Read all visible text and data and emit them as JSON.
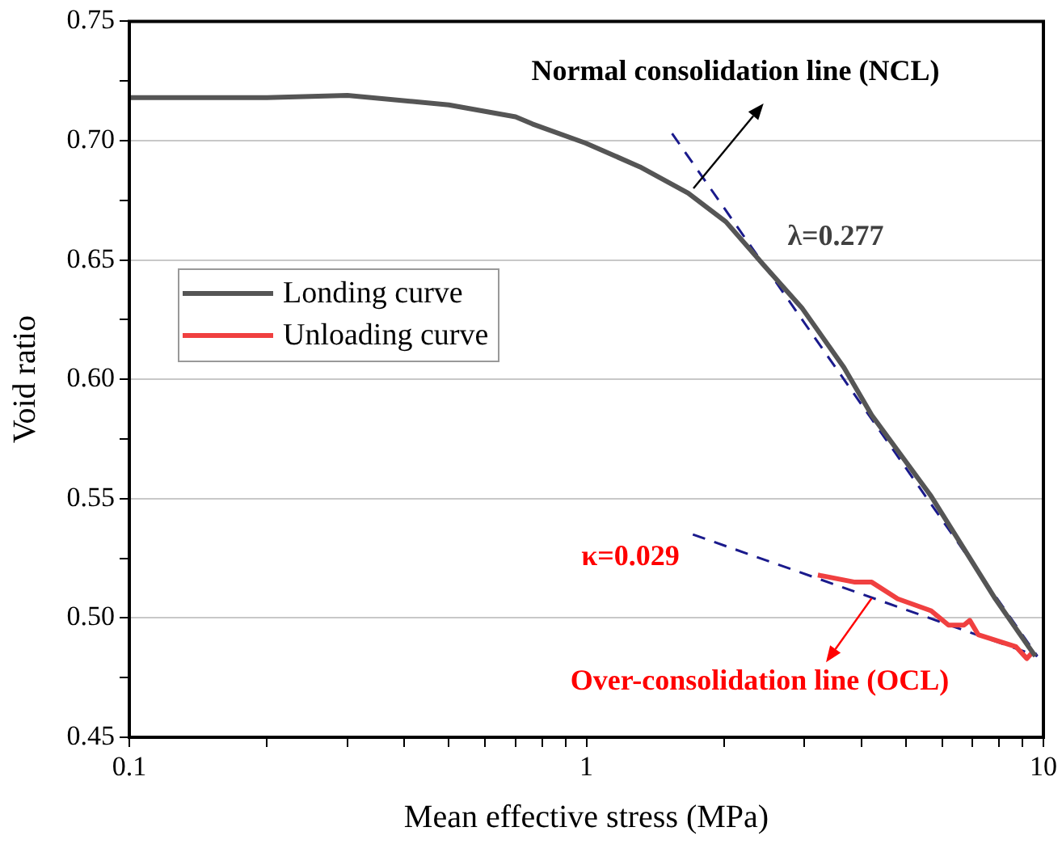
{
  "chart_data": {
    "type": "line",
    "xlabel": "Mean effective stress (MPa)",
    "ylabel": "Void ratio",
    "log": "x",
    "grid": "y",
    "legend": "left",
    "marker": "none",
    "xlim": [
      0.1,
      10
    ],
    "ylim": [
      0.45,
      0.75
    ],
    "xticks": [
      0.1,
      {
        "value": 0.2,
        "label": null
      },
      {
        "value": 0.3,
        "label": null
      },
      {
        "value": 0.4,
        "label": null
      },
      {
        "value": 0.5,
        "label": null
      },
      {
        "value": 0.6,
        "label": null
      },
      {
        "value": 0.7,
        "label": null
      },
      {
        "value": 0.8,
        "label": null
      },
      {
        "value": 0.9,
        "label": null
      },
      1,
      {
        "value": 2,
        "label": null
      },
      {
        "value": 3,
        "label": null
      },
      {
        "value": 4,
        "label": null
      },
      {
        "value": 5,
        "label": null
      },
      {
        "value": 6,
        "label": null
      },
      {
        "value": 7,
        "label": null
      },
      {
        "value": 8,
        "label": null
      },
      {
        "value": 9,
        "label": null
      },
      10
    ],
    "yticks": [
      {
        "value": 0.45,
        "label": "0.45"
      },
      {
        "value": 0.475,
        "label": null
      },
      {
        "value": 0.5,
        "label": "0.50"
      },
      {
        "value": 0.525,
        "label": null
      },
      {
        "value": 0.55,
        "label": "0.55"
      },
      {
        "value": 0.575,
        "label": null
      },
      {
        "value": 0.6,
        "label": "0.60"
      },
      {
        "value": 0.625,
        "label": null
      },
      {
        "value": 0.65,
        "label": "0.65"
      },
      {
        "value": 0.675,
        "label": null
      },
      {
        "value": 0.7,
        "label": "0.70"
      },
      {
        "value": 0.725,
        "label": null
      },
      {
        "value": 0.75,
        "label": "0.75"
      }
    ],
    "series": [
      {
        "name": "Londing curve",
        "color": "#555555",
        "line_style": "solid",
        "x": [
          0.1,
          0.2,
          0.3,
          0.5,
          0.7,
          0.762,
          0.996,
          1.31,
          1.67,
          2.02,
          2.44,
          2.96,
          3.66,
          4.21,
          5.68,
          7.85,
          9.2,
          9.6
        ],
        "values": [
          0.718,
          0.718,
          0.719,
          0.715,
          0.71,
          0.707,
          0.699,
          0.689,
          0.678,
          0.666,
          0.648,
          0.63,
          0.605,
          0.585,
          0.551,
          0.508,
          0.489,
          0.484
        ]
      },
      {
        "name": "Unloading curve",
        "color": "#f04040",
        "line_style": "solid",
        "x": [
          9.5,
          9.2,
          8.7,
          7.2,
          6.9,
          6.7,
          6.2,
          5.68,
          4.8,
          4.21,
          3.87,
          3.21
        ],
        "values": [
          0.486,
          0.483,
          0.488,
          0.493,
          0.499,
          0.497,
          0.497,
          0.503,
          0.508,
          0.515,
          0.515,
          0.518
        ]
      },
      {
        "type": "line",
        "color": "#1a1a8c",
        "line_style": "dashed",
        "x": [
          1.54,
          9.7
        ],
        "values": [
          0.703,
          0.484
        ]
      },
      {
        "type": "line",
        "color": "#1a1a8c",
        "line_style": "dashed",
        "x": [
          1.71,
          9.7
        ],
        "values": [
          0.535,
          0.484
        ]
      }
    ],
    "annotations": [
      {
        "text": "Normal consolidation line (NCL)",
        "x": 1.71,
        "y": 0.68
      },
      "λ=0.277",
      "κ=0.029",
      {
        "text": "Over-consolidation line (OCL)",
        "x": 4.21,
        "y": 0.508
      }
    ]
  }
}
